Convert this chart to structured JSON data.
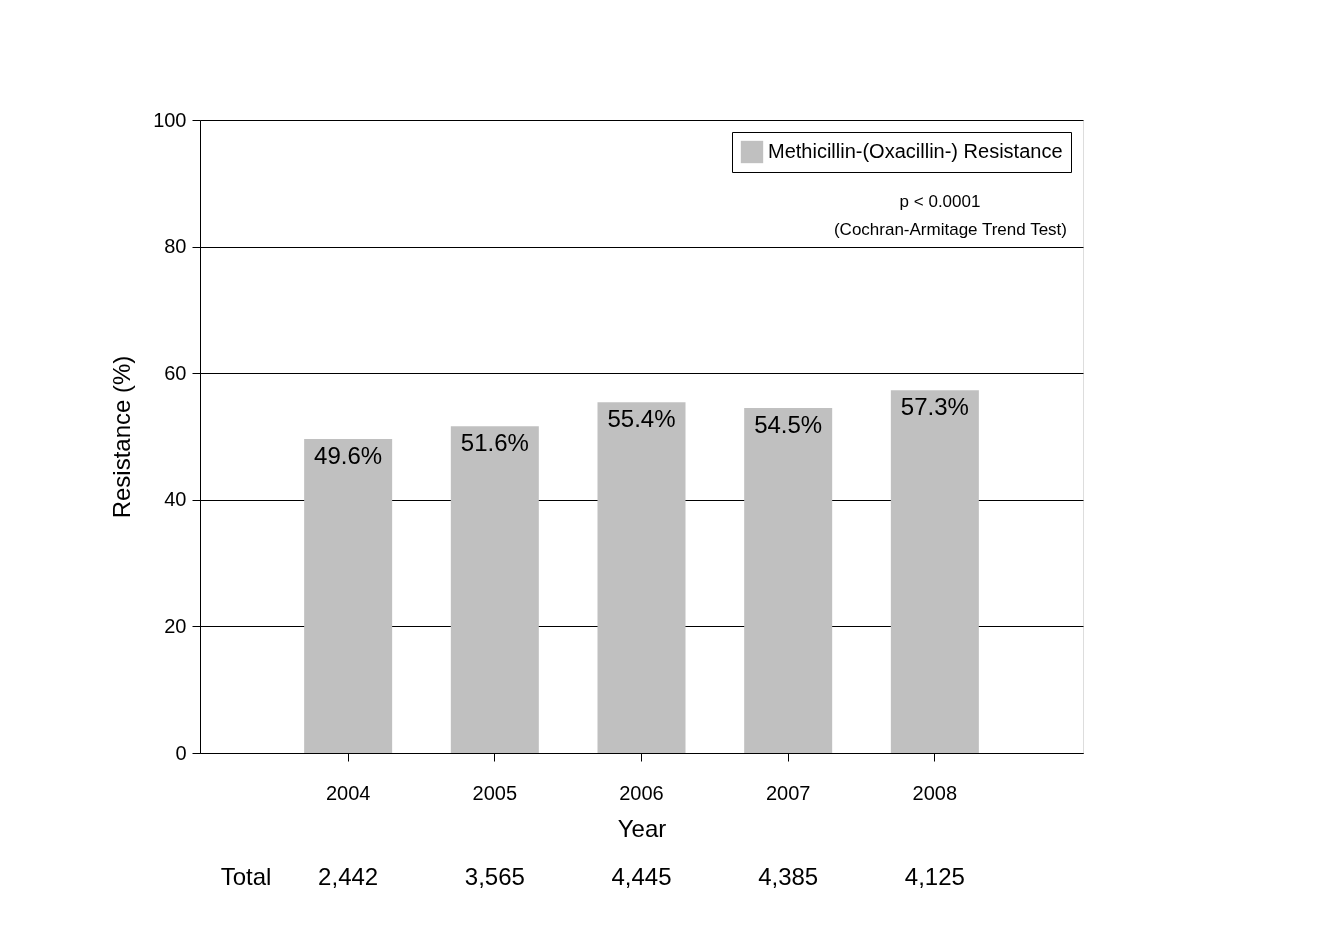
{
  "chart_data": {
    "type": "bar",
    "xlabel": "Year",
    "ylabel": "Resistance (%)",
    "categories": [
      "2004",
      "2005",
      "2006",
      "2007",
      "2008"
    ],
    "series": [
      {
        "name": "Methicillin-(Oxacillin-) Resistance",
        "color": "#c0c0c0",
        "values": [
          49.6,
          51.6,
          55.4,
          54.5,
          57.3
        ],
        "value_labels": [
          "49.6%",
          "51.6%",
          "55.4%",
          "54.5%",
          "57.3%"
        ]
      }
    ],
    "ylim": [
      0,
      100
    ],
    "yticks": [
      0,
      20,
      40,
      60,
      80,
      100
    ],
    "grid": "y",
    "legend": "top right",
    "annotations": [
      "p < 0.0001",
      "(Cochran-Armitage Trend Test)",
      "Total",
      "2,442",
      "3,565",
      "4,445",
      "4,385",
      "4,125"
    ]
  }
}
